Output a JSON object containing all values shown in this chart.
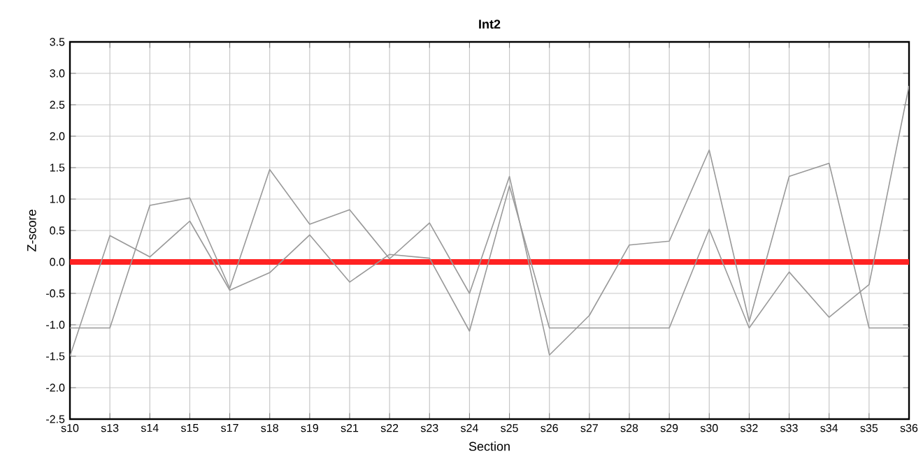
{
  "chart_data": {
    "type": "line",
    "title": "Int2",
    "xlabel": "Section",
    "ylabel": "Z-score",
    "categories": [
      "s10",
      "s13",
      "s14",
      "s15",
      "s17",
      "s18",
      "s19",
      "s21",
      "s22",
      "s23",
      "s24",
      "s25",
      "s26",
      "s27",
      "s28",
      "s29",
      "s30",
      "s32",
      "s33",
      "s34",
      "s35",
      "s36"
    ],
    "series": [
      {
        "color": "#999999",
        "values": [
          -1.05,
          -1.05,
          0.9,
          1.02,
          -0.42,
          1.47,
          0.6,
          0.83,
          0.05,
          0.62,
          -0.5,
          1.36,
          -1.48,
          -0.85,
          0.27,
          0.33,
          1.78,
          -0.95,
          1.36,
          1.57,
          -1.05,
          -1.05
        ]
      },
      {
        "color": "#999999",
        "values": [
          -1.5,
          0.42,
          0.08,
          0.65,
          -0.45,
          -0.17,
          0.43,
          -0.32,
          0.12,
          0.06,
          -1.1,
          1.21,
          -1.05,
          -1.05,
          -1.05,
          -1.05,
          0.52,
          -1.05,
          -0.16,
          -0.88,
          -0.36,
          2.8
        ]
      }
    ],
    "ylim": [
      -2.5,
      3.5
    ],
    "yticks": [
      {
        "value": -2.5,
        "label": "-2.5"
      },
      {
        "value": -2,
        "label": "-2.0"
      },
      {
        "value": -1.5,
        "label": "-1.5"
      },
      {
        "value": -1,
        "label": "-1.0"
      },
      {
        "value": -0.5,
        "label": "-0.5"
      },
      {
        "value": 0,
        "label": "0.0"
      },
      {
        "value": 0.5,
        "label": "0.5"
      },
      {
        "value": 1,
        "label": "1.0"
      },
      {
        "value": 1.5,
        "label": "1.5"
      },
      {
        "value": 2,
        "label": "2.0"
      },
      {
        "value": 2.5,
        "label": "2.5"
      },
      {
        "value": 3,
        "label": "3.0"
      },
      {
        "value": 3.5,
        "label": "3.5"
      }
    ],
    "ref_lines": [
      {
        "axis": "y",
        "value": 0,
        "color": "#ff2222"
      }
    ],
    "grid": true,
    "marker": "none",
    "line_style": "solid"
  }
}
